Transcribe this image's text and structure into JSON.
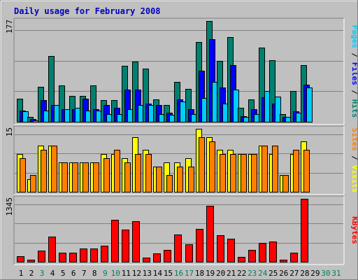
{
  "chart_data": {
    "type": "bar",
    "title": "Daily usage for February 2008",
    "categories": [
      "1",
      "2",
      "3",
      "4",
      "5",
      "6",
      "7",
      "8",
      "9",
      "10",
      "11",
      "12",
      "13",
      "14",
      "15",
      "16",
      "17",
      "18",
      "19",
      "20",
      "21",
      "22",
      "23",
      "24",
      "25",
      "26",
      "27",
      "28",
      "29",
      "30",
      "31"
    ],
    "weekend_days": [
      "3",
      "9",
      "10",
      "16",
      "17",
      "23",
      "24",
      "30",
      "31"
    ],
    "panels": [
      {
        "id": "hits",
        "max_label": "177",
        "ylim": [
          0,
          177
        ],
        "right_label_parts": [
          {
            "text": "Pages",
            "color": "#00ccff"
          },
          {
            "text": " / ",
            "color": "#000000"
          },
          {
            "text": "Files",
            "color": "#0000ff"
          },
          {
            "text": " / ",
            "color": "#000000"
          },
          {
            "text": "Hits",
            "color": "#008070"
          }
        ],
        "series": [
          {
            "name": "Hits",
            "color": "#008070",
            "values": [
              40,
              8,
              62,
              115,
              64,
              46,
              46,
              64,
              38,
              38,
              98,
              106,
              93,
              39,
              30,
              70,
              58,
              140,
              177,
              107,
              149,
              25,
              39,
              130,
              108,
              13,
              54,
              100,
              0,
              0,
              0
            ]
          },
          {
            "name": "Files",
            "color": "#0000ff",
            "values": [
              20,
              5,
              38,
              30,
              22,
              22,
              40,
              22,
              30,
              24,
              57,
              57,
              32,
              30,
              16,
              39,
              22,
              90,
              145,
              60,
              100,
              10,
              22,
              43,
              32,
              8,
              18,
              65,
              0,
              0,
              0
            ]
          },
          {
            "name": "Pages",
            "color": "#00ccff",
            "values": [
              18,
              3,
              20,
              30,
              22,
              24,
              20,
              20,
              14,
              14,
              22,
              30,
              30,
              14,
              12,
              36,
              14,
              42,
              70,
              32,
              56,
              8,
              14,
              54,
              44,
              8,
              16,
              60,
              0,
              0,
              0
            ]
          }
        ]
      },
      {
        "id": "visits",
        "max_label": "15",
        "ylim": [
          0,
          15
        ],
        "right_label_parts": [
          {
            "text": "Sites",
            "color": "#ff8000"
          },
          {
            "text": " / ",
            "color": "#000000"
          },
          {
            "text": "Visits",
            "color": "#ffff00"
          }
        ],
        "series": [
          {
            "name": "Visits",
            "color": "#ffff00",
            "values": [
              9,
              3,
              11,
              11,
              7,
              7,
              7,
              7,
              9,
              9,
              8,
              13,
              10,
              6,
              7,
              7,
              8,
              15,
              13,
              10,
              10,
              9,
              9,
              11,
              9,
              4,
              9,
              12,
              0,
              0,
              0
            ]
          },
          {
            "name": "Sites",
            "color": "#ff8000",
            "values": [
              8,
              4,
              10,
              11,
              7,
              7,
              7,
              7,
              8,
              10,
              7,
              9,
              9,
              6,
              4,
              6,
              6,
              13,
              12,
              9,
              9,
              9,
              9,
              11,
              11,
              4,
              10,
              10,
              0,
              0,
              0
            ]
          }
        ]
      },
      {
        "id": "kbytes",
        "max_label": "1345",
        "ylim": [
          0,
          1345
        ],
        "right_label_parts": [
          {
            "text": "KBytes",
            "color": "#ff0000"
          }
        ],
        "series": [
          {
            "name": "KBytes",
            "color": "#ff0000",
            "values": [
              115,
              50,
              240,
              540,
              190,
              190,
              280,
              290,
              350,
              900,
              685,
              860,
              90,
              180,
              250,
              590,
              370,
              700,
              1190,
              570,
              500,
              100,
              250,
              400,
              430,
              40,
              200,
              1345,
              0,
              0,
              0
            ]
          }
        ]
      }
    ]
  }
}
